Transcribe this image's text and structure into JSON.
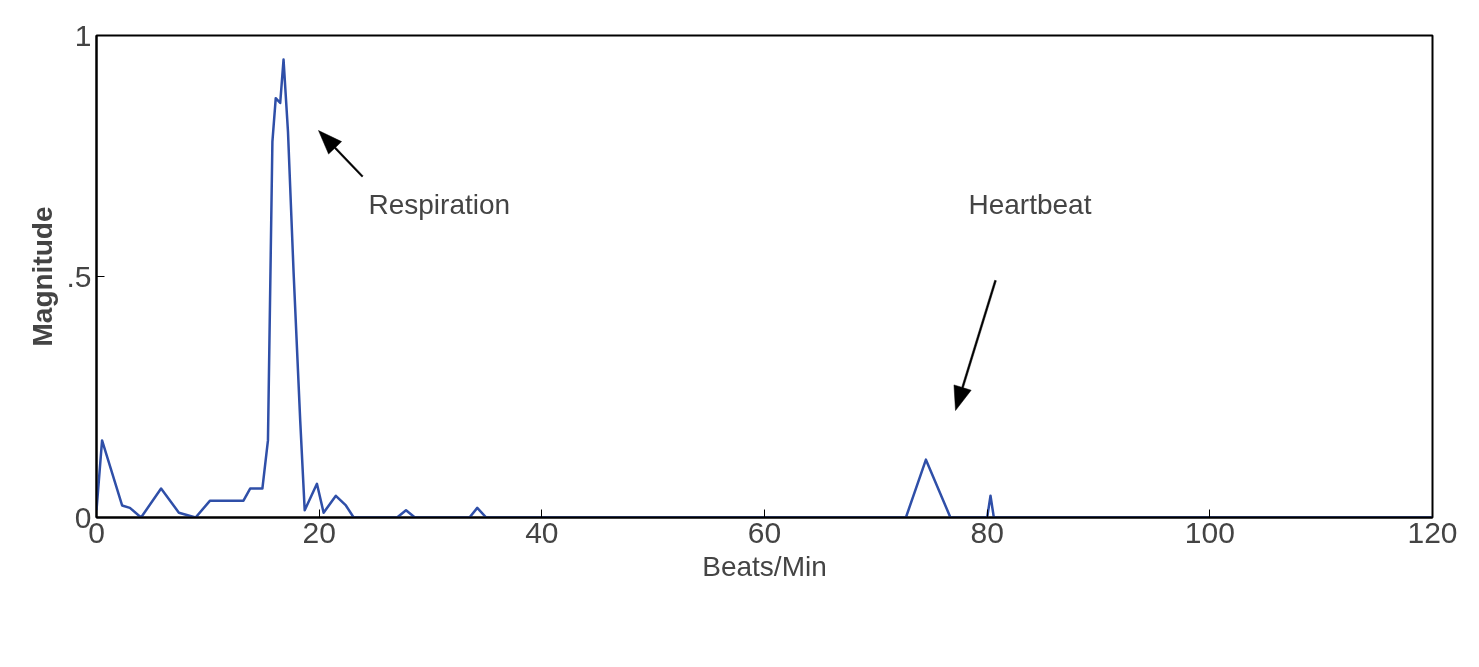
{
  "chart_data": {
    "type": "line",
    "xlabel": "Beats/Min",
    "ylabel": "Magnitude",
    "x": [
      0,
      0.5,
      2.3,
      3,
      4,
      5.8,
      7.4,
      8.9,
      10.2,
      13.2,
      13.8,
      14.9,
      15.4,
      15.8,
      16.1,
      16.5,
      16.8,
      17.2,
      17.7,
      18.3,
      18.7,
      19.8,
      20.4,
      21.5,
      22.4,
      23.1,
      27,
      27.8,
      28.6,
      33.5,
      34.2,
      35,
      72.7,
      74.5,
      76.7,
      80,
      80.3,
      80.6,
      120
    ],
    "series": [
      {
        "color": "#2f4fa8",
        "values": [
          0.015,
          0.16,
          0.025,
          0.02,
          0,
          0.06,
          0.01,
          0,
          0.035,
          0.035,
          0.06,
          0.06,
          0.16,
          0.78,
          0.87,
          0.86,
          0.95,
          0.8,
          0.51,
          0.2,
          0.015,
          0.07,
          0.01,
          0.045,
          0.025,
          0,
          0,
          0.015,
          0,
          0,
          0.02,
          0,
          0,
          0.12,
          0,
          0,
          0.045,
          0,
          0
        ]
      }
    ],
    "xlim": [
      0,
      120
    ],
    "ylim": [
      0,
      1
    ],
    "xticks": [
      0,
      20,
      40,
      60,
      80,
      100,
      120
    ],
    "yticks": [
      0,
      {
        "value": 0.5,
        "label": ".5"
      },
      1
    ],
    "grid": false,
    "marker": "none",
    "line_style": "solid",
    "annotations": [
      "Respiration",
      "Heartbeat"
    ]
  }
}
